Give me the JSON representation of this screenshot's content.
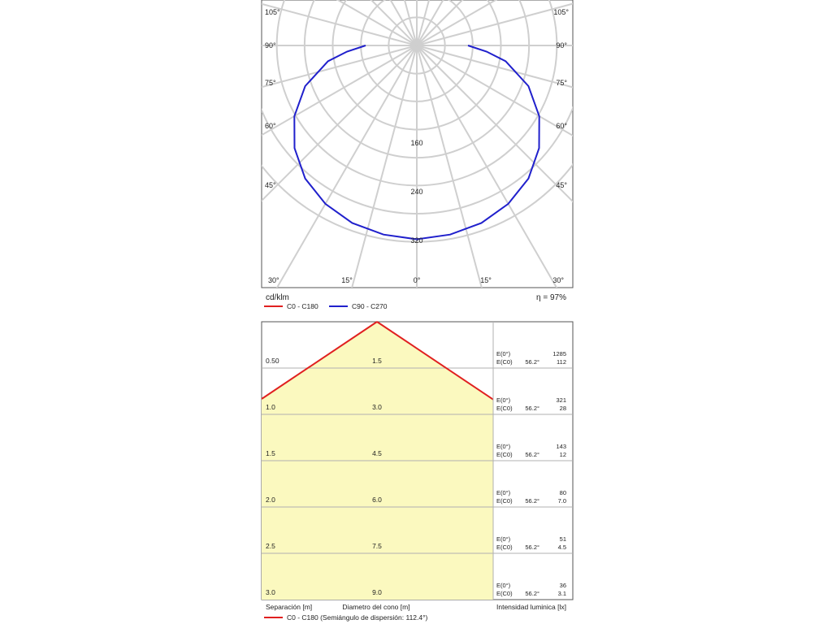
{
  "polar_panel": {
    "angle_labels_left": [
      "105°",
      "90°",
      "75°",
      "60°",
      "45°",
      "30°"
    ],
    "angle_labels_right": [
      "105°",
      "90°",
      "75°",
      "60°",
      "45°",
      "30°"
    ],
    "angle_labels_bottom": [
      "15°",
      "0°",
      "15°"
    ],
    "radial_ticks": [
      "160",
      "240",
      "320"
    ],
    "unit": "cd/klm",
    "efficiency": "η = 97%",
    "legend": [
      {
        "label": "C0 - C180",
        "color": "#e02020"
      },
      {
        "label": "C90 - C270",
        "color": "#2020cc"
      }
    ]
  },
  "cone_panel": {
    "rows": [
      {
        "separation": "0.50",
        "diameter": "1.5",
        "e0_label": "E(0°)",
        "ec0_label": "E(C0)",
        "angle": "56.2°",
        "e0": "1285",
        "ec0": "112"
      },
      {
        "separation": "1.0",
        "diameter": "3.0",
        "e0_label": "E(0°)",
        "ec0_label": "E(C0)",
        "angle": "56.2°",
        "e0": "321",
        "ec0": "28"
      },
      {
        "separation": "1.5",
        "diameter": "4.5",
        "e0_label": "E(0°)",
        "ec0_label": "E(C0)",
        "angle": "56.2°",
        "e0": "143",
        "ec0": "12"
      },
      {
        "separation": "2.0",
        "diameter": "6.0",
        "e0_label": "E(0°)",
        "ec0_label": "E(C0)",
        "angle": "56.2°",
        "e0": "80",
        "ec0": "7.0"
      },
      {
        "separation": "2.5",
        "diameter": "7.5",
        "e0_label": "E(0°)",
        "ec0_label": "E(C0)",
        "angle": "56.2°",
        "e0": "51",
        "ec0": "4.5"
      },
      {
        "separation": "3.0",
        "diameter": "9.0",
        "e0_label": "E(0°)",
        "ec0_label": "E(C0)",
        "angle": "56.2°",
        "e0": "36",
        "ec0": "3.1"
      }
    ],
    "footer_separation": "Separación [m]",
    "footer_diameter": "Diametro del cono [m]",
    "footer_intensity": "Intensidad luminica [lx]",
    "legend_label": "C0 - C180 (Semiángulo de dispersión: 112.4°)",
    "legend_color": "#e02020",
    "fill_color": "#fbf9bf"
  },
  "chart_data": [
    {
      "type": "line",
      "subtype": "polar",
      "unit": "cd/klm",
      "angle_ticks_deg": [
        0,
        15,
        30,
        45,
        60,
        75,
        90,
        105
      ],
      "radial_ticks": [
        160,
        240,
        320
      ],
      "series": [
        {
          "name": "C90 - C270",
          "color": "#2020cc",
          "angles_deg": [
            0,
            10,
            20,
            30,
            40,
            50,
            60,
            70,
            80,
            85,
            90
          ],
          "values": [
            318,
            315,
            310,
            300,
            285,
            262,
            232,
            195,
            148,
            115,
            84
          ]
        }
      ],
      "legend": [
        "C0 - C180",
        "C90 - C270"
      ],
      "annotation": "η = 97%"
    },
    {
      "type": "table",
      "subtype": "cone",
      "half_angle_deg": 56.2,
      "dispersion_half_angle_deg": 112.4,
      "separation_m": [
        0.5,
        1.0,
        1.5,
        2.0,
        2.5,
        3.0
      ],
      "cone_diameter_m": [
        1.5,
        3.0,
        4.5,
        6.0,
        7.5,
        9.0
      ],
      "E_0_lx": [
        1285,
        321,
        143,
        80,
        51,
        36
      ],
      "E_C0_lx": [
        112,
        28,
        12,
        7.0,
        4.5,
        3.1
      ]
    }
  ]
}
